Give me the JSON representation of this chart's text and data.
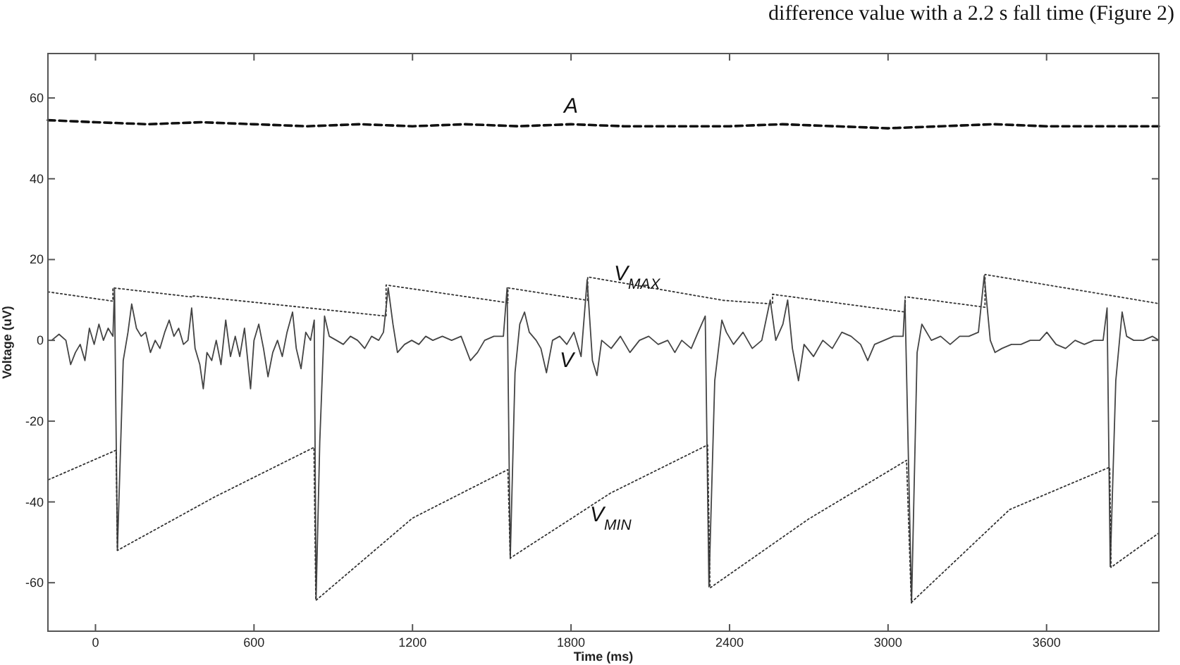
{
  "chart_data": {
    "type": "line",
    "xlabel": "Time (ms)",
    "ylabel": "Voltage (uV)",
    "annotations": [
      "difference value with a 2.2 s fall time (Figure 2)"
    ],
    "xlim": [
      -180,
      4025
    ],
    "ylim": [
      -72,
      71
    ],
    "xticks": [
      0,
      600,
      1200,
      1800,
      2400,
      3000,
      3600
    ],
    "yticks": [
      -60,
      -40,
      -20,
      0,
      20,
      40,
      60
    ],
    "grid": false,
    "marker": "none",
    "series": [
      {
        "name": "A",
        "color": "#111111",
        "line_style": "dashed",
        "x": [
          -180,
          0,
          200,
          400,
          600,
          800,
          1000,
          1200,
          1400,
          1600,
          1800,
          2000,
          2200,
          2400,
          2600,
          2800,
          3000,
          3200,
          3400,
          3600,
          3800,
          4025
        ],
        "values": [
          54.5,
          54,
          53.5,
          54,
          53.5,
          53,
          53.5,
          53,
          53.5,
          53,
          53.5,
          53,
          53,
          53,
          53.5,
          53,
          52.5,
          53,
          53.5,
          53,
          53,
          53
        ]
      },
      {
        "name": "V$_{MAX}$",
        "color": "#333333",
        "line_style": "dotted",
        "x": [
          -180,
          66,
          66,
          370,
          370,
          1100,
          1100,
          1561,
          1561,
          1863,
          1863,
          2376,
          2563,
          2563,
          3065,
          3065,
          3367,
          3367,
          4025
        ],
        "values": [
          12,
          9.7,
          13,
          10.7,
          11,
          6,
          13.7,
          9.3,
          13,
          9.9,
          15.7,
          9.9,
          9,
          11.4,
          7,
          10.8,
          8.2,
          16.3,
          9.1
        ]
      },
      {
        "name": "V",
        "color": "#444444",
        "line_style": "solid",
        "x": [
          -166,
          -138,
          -112,
          -94,
          -76,
          -58,
          -40,
          -23,
          -5,
          13,
          30,
          48,
          66,
          72,
          83,
          105,
          123,
          137,
          155,
          173,
          190,
          208,
          226,
          244,
          262,
          279,
          297,
          315,
          333,
          350,
          364,
          377,
          395,
          408,
          422,
          440,
          457,
          475,
          493,
          511,
          529,
          546,
          564,
          587,
          600,
          618,
          636,
          653,
          671,
          689,
          707,
          725,
          746,
          760,
          778,
          796,
          814,
          828,
          835,
          849,
          867,
          885,
          912,
          938,
          965,
          992,
          1019,
          1045,
          1072,
          1090,
          1108,
          1126,
          1143,
          1170,
          1197,
          1224,
          1250,
          1277,
          1313,
          1348,
          1384,
          1419,
          1446,
          1473,
          1508,
          1544,
          1558,
          1570,
          1588,
          1606,
          1624,
          1642,
          1668,
          1686,
          1707,
          1730,
          1757,
          1784,
          1811,
          1838,
          1861,
          1881,
          1898,
          1916,
          1952,
          1987,
          2023,
          2059,
          2094,
          2130,
          2166,
          2193,
          2219,
          2255,
          2281,
          2308,
          2322,
          2344,
          2371,
          2388,
          2415,
          2451,
          2486,
          2522,
          2554,
          2575,
          2602,
          2620,
          2638,
          2661,
          2682,
          2718,
          2753,
          2789,
          2825,
          2860,
          2896,
          2923,
          2949,
          2985,
          3021,
          3057,
          3064,
          3089,
          3110,
          3128,
          3164,
          3199,
          3235,
          3271,
          3306,
          3342,
          3364,
          3387,
          3405,
          3431,
          3467,
          3503,
          3538,
          3574,
          3601,
          3636,
          3672,
          3708,
          3743,
          3779,
          3814,
          3829,
          3841,
          3862,
          3886,
          3903,
          3930,
          3966,
          4001,
          4025
        ],
        "values": [
          0,
          1.5,
          0,
          -6,
          -3,
          -1,
          -5,
          3,
          -1,
          4,
          0,
          3,
          1,
          13,
          -52,
          -5,
          2,
          9,
          3,
          1,
          2,
          -3,
          0,
          -2,
          2,
          5,
          1,
          3,
          -1,
          0,
          8,
          -2,
          -6,
          -12,
          -3,
          -5,
          0,
          -6,
          5,
          -4,
          1,
          -4,
          3,
          -12,
          0,
          4,
          -2,
          -9,
          -3,
          0,
          -4,
          2,
          7,
          -2,
          -7,
          2,
          0,
          5,
          -64,
          -25,
          6,
          1,
          0,
          -1,
          1,
          0,
          -2,
          1,
          0,
          2,
          13,
          4,
          -3,
          -1,
          0,
          -1,
          1,
          0,
          1,
          0,
          1,
          -5,
          -3,
          0,
          1,
          1,
          13,
          -54,
          -8,
          4,
          7,
          2,
          0,
          -2,
          -8,
          0,
          1,
          -1,
          2,
          -4,
          15,
          -5,
          -8.7,
          0,
          -2,
          1,
          -3,
          0,
          1,
          -1,
          0,
          -3,
          0,
          -2,
          2,
          6,
          -61,
          -10,
          5,
          2,
          -1,
          2,
          -2,
          0,
          10,
          0,
          4,
          10,
          -2,
          -10,
          -1,
          -4,
          0,
          -2,
          2,
          1,
          -1,
          -5,
          -1,
          0,
          1,
          1,
          10,
          -65,
          -3,
          4,
          0,
          1,
          -1,
          1,
          1,
          2,
          16,
          0,
          -3,
          -2,
          -1,
          -1,
          0,
          0,
          2,
          -1,
          -2,
          0,
          -1,
          0,
          0,
          8,
          -56,
          -10,
          7,
          1,
          0,
          0,
          1,
          0
        ]
      },
      {
        "name": "V$_{MIN}$",
        "color": "#333333",
        "line_style": "dotted",
        "x": [
          -178,
          78,
          83,
          450,
          827,
          834,
          1200,
          1561,
          1570,
          1950,
          2317,
          2326,
          2700,
          3070,
          3088,
          3460,
          3839,
          3844,
          4025
        ],
        "values": [
          -34.5,
          -27.2,
          -52,
          -38.8,
          -26.5,
          -64.4,
          -44,
          -32,
          -53.9,
          -37.8,
          -25.9,
          -61.3,
          -44.2,
          -29.7,
          -64.9,
          -41.9,
          -31.4,
          -56.2,
          -47.7
        ]
      }
    ]
  }
}
